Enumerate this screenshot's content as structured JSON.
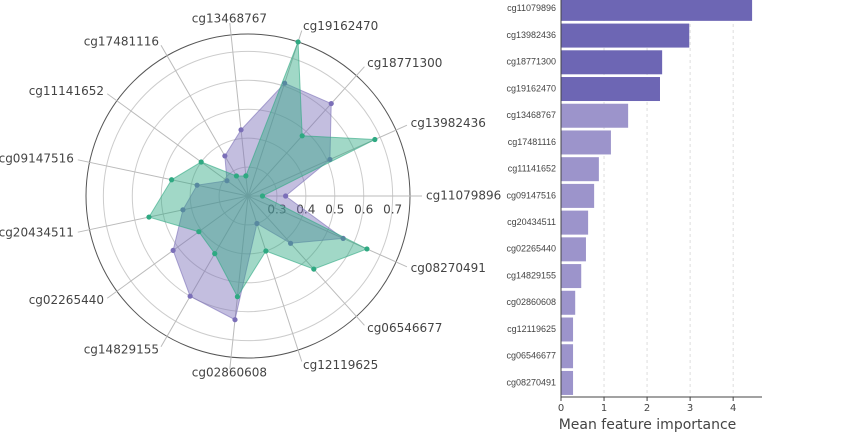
{
  "chart_data": [
    {
      "type": "radar",
      "categories": [
        "cg11079896",
        "cg13982436",
        "cg18771300",
        "cg19162470",
        "cg13468767",
        "cg17481116",
        "cg11141652",
        "cg09147516",
        "cg20434511",
        "cg02265440",
        "cg14829155",
        "cg02860608",
        "cg12119625",
        "cg06546677",
        "cg08270491"
      ],
      "series": [
        {
          "color": "#7b6fb8",
          "values": [
            0.33,
            0.51,
            0.63,
            0.61,
            0.43,
            0.36,
            0.29,
            0.38,
            0.43,
            0.52,
            0.6,
            0.63,
            0.3,
            0.42,
            0.56
          ]
        },
        {
          "color": "#2fa982",
          "values": [
            0.25,
            0.68,
            0.48,
            0.76,
            0.27,
            0.28,
            0.4,
            0.47,
            0.55,
            0.41,
            0.43,
            0.55,
            0.4,
            0.54,
            0.65
          ]
        }
      ],
      "ylim": [
        0.2,
        0.76
      ],
      "yticks": [
        0.3,
        0.4,
        0.5,
        0.6,
        0.7
      ],
      "grid": true
    },
    {
      "type": "barh",
      "categories": [
        "cg11079896",
        "cg13982436",
        "cg18771300",
        "cg19162470",
        "cg13468767",
        "cg17481116",
        "cg11141652",
        "cg09147516",
        "cg20434511",
        "cg02265440",
        "cg14829155",
        "cg02860608",
        "cg12119625",
        "cg06546677",
        "cg08270491"
      ],
      "values": [
        4.44,
        2.98,
        2.35,
        2.3,
        1.56,
        1.16,
        0.88,
        0.77,
        0.63,
        0.58,
        0.47,
        0.33,
        0.28,
        0.28,
        0.28
      ],
      "colors": [
        "#6d66b4",
        "#6d66b4",
        "#6d66b4",
        "#6d66b4",
        "#9c94cb",
        "#9c94cb",
        "#9c94cb",
        "#9c94cb",
        "#9c94cb",
        "#9c94cb",
        "#9c94cb",
        "#9c94cb",
        "#9c94cb",
        "#9c94cb",
        "#9c94cb"
      ],
      "xlabel": "Mean feature importance",
      "xlim": [
        0,
        4.67
      ],
      "xticks": [
        0,
        1,
        2,
        3,
        4
      ],
      "grid": true
    }
  ]
}
